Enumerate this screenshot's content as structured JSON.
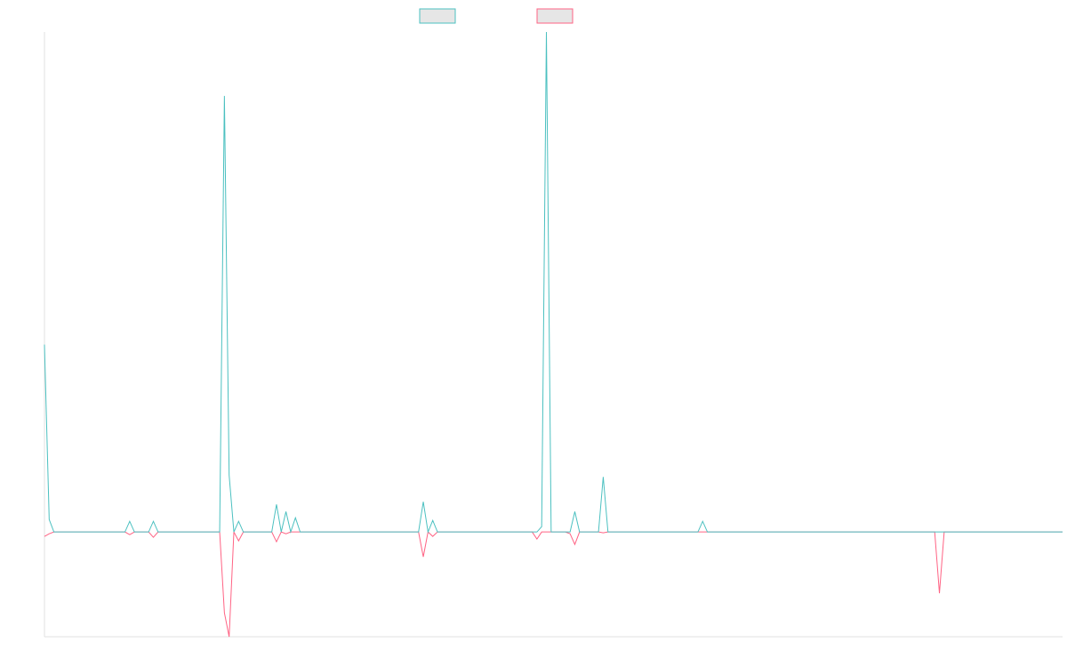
{
  "chart_data": {
    "type": "line",
    "ylim": [
      -11.8,
      56.3
    ],
    "legend": "top",
    "series": [
      {
        "color": "#4bc0c0",
        "values": [
          21.1,
          1.4,
          0,
          0,
          0,
          0,
          0,
          0,
          0,
          0,
          0,
          0,
          0,
          0,
          0,
          0,
          0,
          0,
          1.2,
          0,
          0,
          0,
          0,
          1.2,
          0,
          0,
          0,
          0,
          0,
          0,
          0,
          0,
          0,
          0,
          0,
          0,
          0,
          0,
          49.1,
          6.4,
          0,
          1.2,
          0,
          0,
          0,
          0,
          0,
          0,
          0,
          3.1,
          0,
          2.3,
          0,
          1.6,
          0,
          0,
          0,
          0,
          0,
          0,
          0,
          0,
          0,
          0,
          0,
          0,
          0,
          0,
          0,
          0,
          0,
          0,
          0,
          0,
          0,
          0,
          0,
          0,
          0,
          0,
          3.4,
          0,
          1.3,
          0,
          0,
          0,
          0,
          0,
          0,
          0,
          0,
          0,
          0,
          0,
          0,
          0,
          0,
          0,
          0,
          0,
          0,
          0,
          0,
          0,
          0,
          0.6,
          56.3,
          0,
          0,
          0,
          0,
          0,
          2.3,
          0,
          0,
          0,
          0,
          0,
          6.2,
          0,
          0,
          0,
          0,
          0,
          0,
          0,
          0,
          0,
          0,
          0,
          0,
          0,
          0,
          0,
          0,
          0,
          0,
          0,
          0,
          1.2,
          0,
          0,
          0,
          0,
          0,
          0,
          0,
          0,
          0,
          0,
          0,
          0,
          0,
          0,
          0,
          0,
          0,
          0,
          0,
          0,
          0,
          0,
          0,
          0,
          0,
          0,
          0,
          0,
          0,
          0,
          0,
          0,
          0,
          0,
          0,
          0,
          0,
          0,
          0,
          0,
          0,
          0,
          0,
          0,
          0,
          0,
          0,
          0,
          0,
          0,
          0,
          0,
          0,
          0,
          0,
          0,
          0,
          0,
          0,
          0,
          0,
          0,
          0,
          0,
          0,
          0,
          0,
          0,
          0,
          0,
          0,
          0,
          0,
          0,
          0,
          0
        ]
      },
      {
        "color": "#ff6384",
        "values": [
          -0.5,
          -0.2,
          0,
          0,
          0,
          0,
          0,
          0,
          0,
          0,
          0,
          0,
          0,
          0,
          0,
          0,
          0,
          0,
          -0.3,
          0,
          0,
          0,
          0,
          -0.6,
          0,
          0,
          0,
          0,
          0,
          0,
          0,
          0,
          0,
          0,
          0,
          0,
          0,
          0,
          -9.1,
          -11.8,
          0,
          -1.0,
          0,
          0,
          0,
          0,
          0,
          0,
          0,
          -1.1,
          0,
          -0.2,
          0,
          0,
          0,
          0,
          0,
          0,
          0,
          0,
          0,
          0,
          0,
          0,
          0,
          0,
          0,
          0,
          0,
          0,
          0,
          0,
          0,
          0,
          0,
          0,
          0,
          0,
          0,
          0,
          -2.8,
          0,
          -0.5,
          0,
          0,
          0,
          0,
          0,
          0,
          0,
          0,
          0,
          0,
          0,
          0,
          0,
          0,
          0,
          0,
          0,
          0,
          0,
          0,
          0,
          -0.8,
          0,
          0,
          0,
          0,
          0,
          0,
          -0.2,
          -1.4,
          0,
          0,
          0,
          0,
          0,
          -0.1,
          0,
          0,
          0,
          0,
          0,
          0,
          0,
          0,
          0,
          0,
          0,
          0,
          0,
          0,
          0,
          0,
          0,
          0,
          0,
          0,
          0,
          0,
          0,
          0,
          0,
          0,
          0,
          0,
          0,
          0,
          0,
          0,
          0,
          0,
          0,
          0,
          0,
          0,
          0,
          0,
          0,
          0,
          0,
          0,
          0,
          0,
          0,
          0,
          0,
          0,
          0,
          0,
          0,
          0,
          0,
          0,
          0,
          0,
          0,
          0,
          0,
          0,
          0,
          0,
          0,
          0,
          0,
          0,
          0,
          0,
          -6.9,
          0,
          0,
          0,
          0,
          0,
          0,
          0,
          0,
          0,
          0,
          0,
          0,
          0,
          0,
          0,
          0,
          0,
          0,
          0,
          0,
          0,
          0,
          0,
          0,
          0,
          0
        ]
      }
    ]
  }
}
